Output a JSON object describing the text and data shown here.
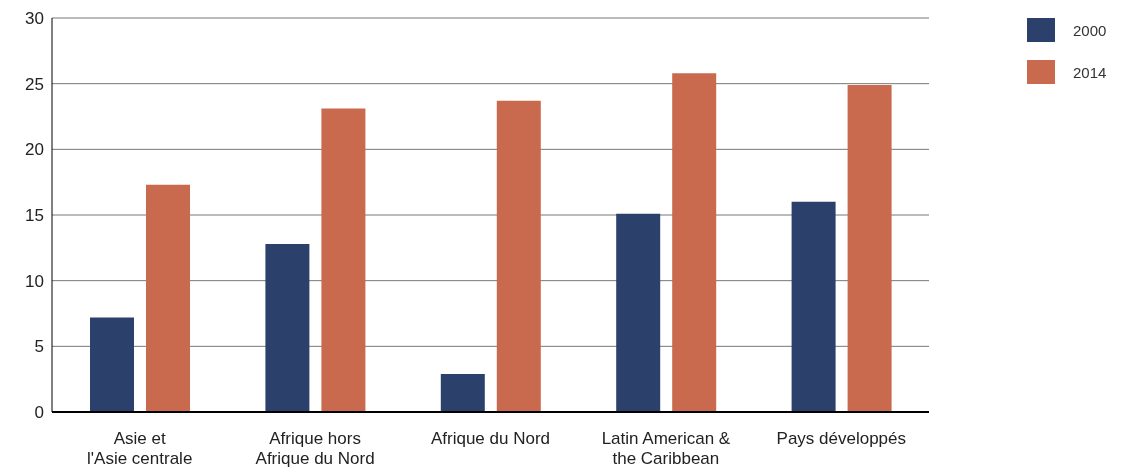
{
  "chart_data": {
    "type": "bar",
    "categories": [
      "Asie et\nl'Asie centrale",
      "Afrique hors\nAfrique du Nord",
      "Afrique du Nord",
      "Latin American &\nthe Caribbean",
      "Pays développés"
    ],
    "series": [
      {
        "name": "2000",
        "color": "#2b416c",
        "values": [
          7.2,
          12.8,
          2.9,
          15.1,
          16.0
        ]
      },
      {
        "name": "2014",
        "color": "#c96a4e",
        "values": [
          17.3,
          23.1,
          23.7,
          25.8,
          24.9
        ]
      }
    ],
    "ylim": [
      0,
      30
    ],
    "yticks": [
      0,
      5,
      10,
      15,
      20,
      25,
      30
    ],
    "grid": "y",
    "legend": "top right"
  }
}
